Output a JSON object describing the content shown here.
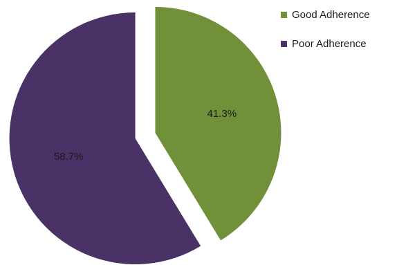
{
  "chart_data": {
    "type": "pie",
    "title": "",
    "categories": [
      "Good Adherence",
      "Poor Adherence"
    ],
    "values": [
      41.3,
      58.7
    ],
    "data_labels": [
      "41.3%",
      "58.7%"
    ],
    "colors": [
      "#71903A",
      "#4A3166"
    ],
    "exploded": true,
    "legend_position": "top-right",
    "legend": [
      {
        "label": "Good Adherence",
        "color": "#71903A"
      },
      {
        "label": "Poor Adherence",
        "color": "#4A3166"
      }
    ]
  }
}
